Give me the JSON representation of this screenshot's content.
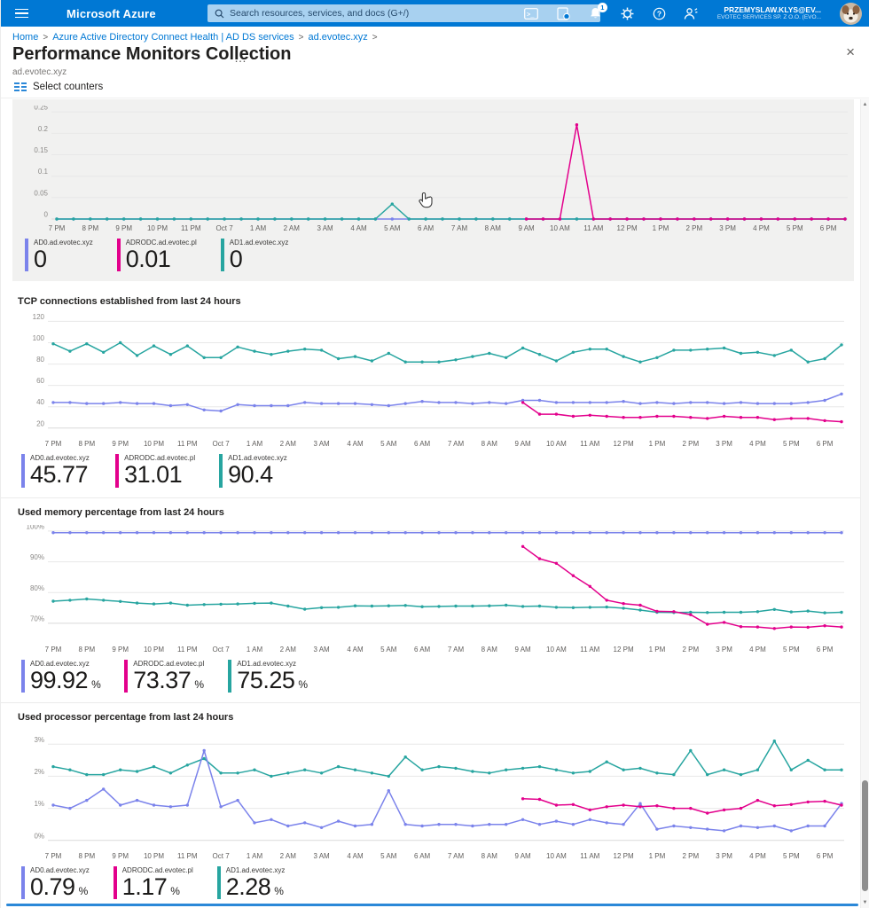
{
  "topbar": {
    "brand": "Microsoft Azure",
    "search_placeholder": "Search resources, services, and docs (G+/)",
    "notification_count": "1",
    "user_name": "PRZEMYSLAW.KLYS@EV...",
    "user_org": "EVOTEC SERVICES SP. Z O.O. (EVO..."
  },
  "icons": {
    "hamburger": "menu",
    "search": "magnifier",
    "cloud_shell": ">_",
    "copilot": "notebook-bulb",
    "notifications": "bell",
    "settings": "gear",
    "help": "?",
    "feedback": "person",
    "close": "×",
    "overflow": "...",
    "scroll_up": "▲",
    "scroll_down": "▼"
  },
  "breadcrumb": {
    "items": [
      "Home",
      "Azure Active Directory Connect Health | AD DS services",
      "ad.evotec.xyz"
    ],
    "separator": ">"
  },
  "page": {
    "title": "Performance Monitors Collection",
    "subtitle": "ad.evotec.xyz"
  },
  "toolbar": {
    "select_counters_label": "Select counters"
  },
  "colors": {
    "blue": "#7b83eb",
    "pink": "#e3008c",
    "teal": "#27a5a0",
    "accent": "#0078d4"
  },
  "chart_data": [
    {
      "type": "line",
      "title": "",
      "y_min": 0,
      "y_max": 0.265,
      "y_ticks": [
        {
          "v": 0.25,
          "label": "0.25"
        },
        {
          "v": 0.2,
          "label": "0.2"
        },
        {
          "v": 0.15,
          "label": "0.15"
        },
        {
          "v": 0.1,
          "label": "0.1"
        },
        {
          "v": 0.05,
          "label": "0.05"
        },
        {
          "v": 0,
          "label": "0"
        }
      ],
      "x_labels": [
        "7 PM",
        "8 PM",
        "9 PM",
        "10 PM",
        "11 PM",
        "Oct 7",
        "1 AM",
        "2 AM",
        "3 AM",
        "4 AM",
        "5 AM",
        "6 AM",
        "7 AM",
        "8 AM",
        "9 AM",
        "10 AM",
        "11 AM",
        "12 PM",
        "1 PM",
        "2 PM",
        "3 PM",
        "4 PM",
        "5 PM",
        "6 PM"
      ],
      "series": [
        {
          "name": "AD0.ad.evotec.xyz",
          "color": "blue",
          "values": [
            0,
            0,
            0,
            0,
            0,
            0,
            0,
            0,
            0,
            0,
            0,
            0,
            0,
            0,
            0,
            0,
            0,
            0,
            0,
            0,
            0,
            0,
            0,
            0,
            0,
            0,
            0,
            0,
            0,
            0,
            0,
            0,
            0,
            0,
            0,
            0,
            0,
            0,
            0,
            0,
            0,
            0,
            0,
            0,
            0,
            0,
            0,
            0
          ]
        },
        {
          "name": "AD1.ad.evotec.xyz",
          "color": "teal",
          "values": [
            0,
            0,
            0,
            0,
            0,
            0,
            0,
            0,
            0,
            0,
            0,
            0,
            0,
            0,
            0,
            0,
            0,
            0,
            0,
            0,
            0.035,
            0,
            0,
            0,
            0,
            0,
            0,
            0,
            0,
            0,
            0,
            0,
            0,
            0,
            0,
            0,
            0,
            0,
            0,
            0,
            0,
            0,
            0,
            0,
            0,
            0,
            0,
            0
          ]
        },
        {
          "name": "ADRODC.ad.evotec.pl",
          "color": "pink",
          "values": [
            null,
            null,
            null,
            null,
            null,
            null,
            null,
            null,
            null,
            null,
            null,
            null,
            null,
            null,
            null,
            null,
            null,
            null,
            null,
            null,
            null,
            null,
            null,
            null,
            null,
            null,
            null,
            null,
            0,
            0,
            0,
            0.22,
            0,
            0,
            0,
            0,
            0,
            0,
            0,
            0,
            0,
            0,
            0,
            0,
            0,
            0,
            0,
            0
          ]
        }
      ],
      "legend": [
        {
          "label": "AD0.ad.evotec.xyz",
          "color": "blue",
          "value": "0",
          "suffix": ""
        },
        {
          "label": "ADRODC.ad.evotec.pl",
          "color": "pink",
          "value": "0.01",
          "suffix": ""
        },
        {
          "label": "AD1.ad.evotec.xyz",
          "color": "teal",
          "value": "0",
          "suffix": ""
        }
      ]
    },
    {
      "type": "line",
      "title": "TCP connections established from last 24 hours",
      "y_min": 14,
      "y_max": 127,
      "y_ticks": [
        {
          "v": 120,
          "label": "120"
        },
        {
          "v": 100,
          "label": "100"
        },
        {
          "v": 80,
          "label": "80"
        },
        {
          "v": 60,
          "label": "60"
        },
        {
          "v": 40,
          "label": "40"
        },
        {
          "v": 20,
          "label": "20"
        }
      ],
      "x_labels": [
        "7 PM",
        "8 PM",
        "9 PM",
        "10 PM",
        "11 PM",
        "Oct 7",
        "1 AM",
        "2 AM",
        "3 AM",
        "4 AM",
        "5 AM",
        "6 AM",
        "7 AM",
        "8 AM",
        "9 AM",
        "10 AM",
        "11 AM",
        "12 PM",
        "1 PM",
        "2 PM",
        "3 PM",
        "4 PM",
        "5 PM",
        "6 PM"
      ],
      "series": [
        {
          "name": "AD1.ad.evotec.xyz",
          "color": "teal",
          "values": [
            99,
            92,
            99,
            91,
            100,
            88,
            97,
            89,
            97,
            86,
            86,
            96,
            92,
            89,
            92,
            94,
            93,
            85,
            87,
            83,
            90,
            82,
            82,
            82,
            84,
            87,
            90,
            86,
            95,
            89,
            83,
            91,
            94,
            94,
            87,
            82,
            86,
            93,
            93,
            94,
            95,
            90,
            91,
            88,
            93,
            82,
            85,
            98
          ]
        },
        {
          "name": "AD0.ad.evotec.xyz",
          "color": "blue",
          "values": [
            44,
            44,
            43,
            43,
            44,
            43,
            43,
            41,
            42,
            37,
            36,
            42,
            41,
            41,
            41,
            44,
            43,
            43,
            43,
            42,
            41,
            43,
            45,
            44,
            44,
            43,
            44,
            43,
            46,
            46,
            44,
            44,
            44,
            44,
            45,
            43,
            44,
            43,
            44,
            44,
            43,
            44,
            43,
            43,
            43,
            44,
            46,
            52
          ]
        },
        {
          "name": "ADRODC.ad.evotec.pl",
          "color": "pink",
          "values": [
            null,
            null,
            null,
            null,
            null,
            null,
            null,
            null,
            null,
            null,
            null,
            null,
            null,
            null,
            null,
            null,
            null,
            null,
            null,
            null,
            null,
            null,
            null,
            null,
            null,
            null,
            null,
            null,
            44,
            33,
            33,
            31,
            32,
            31,
            30,
            30,
            31,
            31,
            30,
            29,
            31,
            30,
            30,
            28,
            29,
            29,
            27,
            26
          ]
        }
      ],
      "legend": [
        {
          "label": "AD0.ad.evotec.xyz",
          "color": "blue",
          "value": "45.77",
          "suffix": ""
        },
        {
          "label": "ADRODC.ad.evotec.pl",
          "color": "pink",
          "value": "31.01",
          "suffix": ""
        },
        {
          "label": "AD1.ad.evotec.xyz",
          "color": "teal",
          "value": "90.4",
          "suffix": ""
        }
      ]
    },
    {
      "type": "line",
      "title": "Used memory percentage from last 24 hours",
      "y_min": 64.5,
      "y_max": 102,
      "y_ticks": [
        {
          "v": 100,
          "label": "100%"
        },
        {
          "v": 90,
          "label": "90%"
        },
        {
          "v": 80,
          "label": "80%"
        },
        {
          "v": 70,
          "label": "70%"
        }
      ],
      "x_labels": [
        "7 PM",
        "8 PM",
        "9 PM",
        "10 PM",
        "11 PM",
        "Oct 7",
        "1 AM",
        "2 AM",
        "3 AM",
        "4 AM",
        "5 AM",
        "6 AM",
        "7 AM",
        "8 AM",
        "9 AM",
        "10 AM",
        "11 AM",
        "12 PM",
        "1 PM",
        "2 PM",
        "3 PM",
        "4 PM",
        "5 PM",
        "6 PM"
      ],
      "series": [
        {
          "name": "AD0.ad.evotec.xyz",
          "color": "blue",
          "values": [
            99.5,
            99.5,
            99.5,
            99.5,
            99.5,
            99.5,
            99.5,
            99.5,
            99.5,
            99.5,
            99.5,
            99.5,
            99.5,
            99.5,
            99.5,
            99.5,
            99.5,
            99.5,
            99.5,
            99.5,
            99.5,
            99.5,
            99.5,
            99.5,
            99.5,
            99.5,
            99.5,
            99.5,
            99.5,
            99.5,
            99.5,
            99.5,
            99.5,
            99.5,
            99.5,
            99.5,
            99.5,
            99.5,
            99.5,
            99.5,
            99.5,
            99.5,
            99.5,
            99.5,
            99.5,
            99.5,
            99.5,
            99.5
          ]
        },
        {
          "name": "AD1.ad.evotec.xyz",
          "color": "teal",
          "values": [
            77.2,
            77.5,
            77.9,
            77.5,
            77.1,
            76.6,
            76.3,
            76.6,
            75.9,
            76.1,
            76.2,
            76.3,
            76.5,
            76.6,
            75.6,
            74.6,
            75.1,
            75.2,
            75.7,
            75.6,
            75.7,
            75.8,
            75.4,
            75.5,
            75.6,
            75.6,
            75.7,
            75.9,
            75.5,
            75.6,
            75.2,
            75.1,
            75.2,
            75.3,
            74.9,
            74.3,
            73.6,
            73.5,
            73.6,
            73.5,
            73.6,
            73.6,
            73.8,
            74.5,
            73.7,
            74.0,
            73.4,
            73.6
          ]
        },
        {
          "name": "ADRODC.ad.evotec.pl",
          "color": "pink",
          "values": [
            null,
            null,
            null,
            null,
            null,
            null,
            null,
            null,
            null,
            null,
            null,
            null,
            null,
            null,
            null,
            null,
            null,
            null,
            null,
            null,
            null,
            null,
            null,
            null,
            null,
            null,
            null,
            null,
            95,
            91,
            89.5,
            85.5,
            82,
            77.5,
            76.4,
            75.9,
            73.9,
            73.8,
            72.8,
            69.7,
            70.3,
            68.9,
            68.8,
            68.3,
            68.8,
            68.7,
            69.2,
            68.8
          ]
        }
      ],
      "legend": [
        {
          "label": "AD0.ad.evotec.xyz",
          "color": "blue",
          "value": "99.92",
          "suffix": "%"
        },
        {
          "label": "ADRODC.ad.evotec.pl",
          "color": "pink",
          "value": "73.37",
          "suffix": "%"
        },
        {
          "label": "AD1.ad.evotec.xyz",
          "color": "teal",
          "value": "75.25",
          "suffix": "%"
        }
      ]
    },
    {
      "type": "line",
      "title": "Used processor percentage from last 24 hours",
      "y_min": -0.2,
      "y_max": 3.45,
      "y_ticks": [
        {
          "v": 3,
          "label": "3%"
        },
        {
          "v": 2,
          "label": "2%"
        },
        {
          "v": 1,
          "label": "1%"
        },
        {
          "v": 0,
          "label": "0%"
        }
      ],
      "x_labels": [
        "7 PM",
        "8 PM",
        "9 PM",
        "10 PM",
        "11 PM",
        "Oct 7",
        "1 AM",
        "2 AM",
        "3 AM",
        "4 AM",
        "5 AM",
        "6 AM",
        "7 AM",
        "8 AM",
        "9 AM",
        "10 AM",
        "11 AM",
        "12 PM",
        "1 PM",
        "2 PM",
        "3 PM",
        "4 PM",
        "5 PM",
        "6 PM"
      ],
      "series": [
        {
          "name": "AD1.ad.evotec.xyz",
          "color": "teal",
          "values": [
            2.3,
            2.2,
            2.05,
            2.05,
            2.2,
            2.15,
            2.3,
            2.1,
            2.35,
            2.55,
            2.1,
            2.1,
            2.2,
            2.0,
            2.1,
            2.2,
            2.1,
            2.3,
            2.2,
            2.1,
            2.0,
            2.6,
            2.2,
            2.3,
            2.25,
            2.15,
            2.1,
            2.2,
            2.25,
            2.3,
            2.2,
            2.1,
            2.15,
            2.45,
            2.2,
            2.25,
            2.1,
            2.05,
            2.8,
            2.05,
            2.2,
            2.05,
            2.2,
            3.1,
            2.2,
            2.5,
            2.2,
            2.2
          ]
        },
        {
          "name": "AD0.ad.evotec.xyz",
          "color": "blue",
          "values": [
            1.1,
            1.0,
            1.25,
            1.6,
            1.1,
            1.25,
            1.1,
            1.05,
            1.1,
            2.8,
            1.05,
            1.25,
            0.55,
            0.65,
            0.45,
            0.55,
            0.4,
            0.6,
            0.45,
            0.5,
            1.55,
            0.5,
            0.45,
            0.5,
            0.5,
            0.45,
            0.5,
            0.5,
            0.65,
            0.5,
            0.6,
            0.5,
            0.65,
            0.55,
            0.5,
            1.15,
            0.35,
            0.45,
            0.4,
            0.35,
            0.3,
            0.45,
            0.4,
            0.45,
            0.3,
            0.45,
            0.45,
            1.15
          ]
        },
        {
          "name": "ADRODC.ad.evotec.pl",
          "color": "pink",
          "values": [
            null,
            null,
            null,
            null,
            null,
            null,
            null,
            null,
            null,
            null,
            null,
            null,
            null,
            null,
            null,
            null,
            null,
            null,
            null,
            null,
            null,
            null,
            null,
            null,
            null,
            null,
            null,
            null,
            1.3,
            1.28,
            1.1,
            1.12,
            0.95,
            1.05,
            1.1,
            1.05,
            1.08,
            1.0,
            1.0,
            0.85,
            0.95,
            1.0,
            1.25,
            1.08,
            1.12,
            1.2,
            1.22,
            1.1
          ]
        }
      ],
      "legend": [
        {
          "label": "AD0.ad.evotec.xyz",
          "color": "blue",
          "value": "0.79",
          "suffix": "%"
        },
        {
          "label": "ADRODC.ad.evotec.pl",
          "color": "pink",
          "value": "1.17",
          "suffix": "%"
        },
        {
          "label": "AD1.ad.evotec.xyz",
          "color": "teal",
          "value": "2.28",
          "suffix": "%"
        }
      ]
    }
  ]
}
